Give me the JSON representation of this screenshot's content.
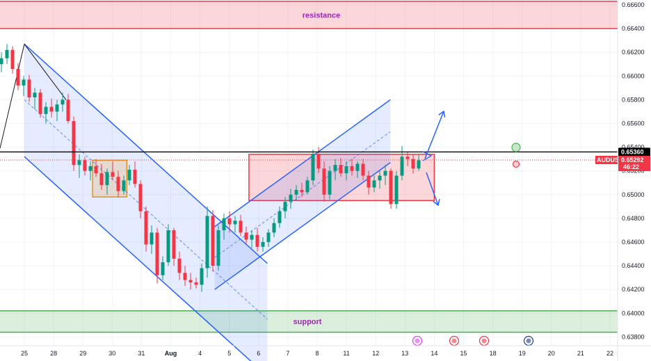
{
  "chart_data": {
    "type": "candlestick",
    "symbol": "AUDUSD",
    "last_price": "0.65292",
    "countdown": "46:22",
    "reference_line_price": "0.65360",
    "ylim": [
      0.6373,
      0.6666
    ],
    "y_ticks": [
      "0.66600",
      "0.66400",
      "0.66200",
      "0.66000",
      "0.65800",
      "0.65600",
      "0.65400",
      "0.65200",
      "0.65000",
      "0.64800",
      "0.64600",
      "0.64400",
      "0.64200",
      "0.64000",
      "0.63800"
    ],
    "x_ticks": [
      "25",
      "28",
      "29",
      "30",
      "31",
      "Aug",
      "4",
      "5",
      "6",
      "7",
      "8",
      "11",
      "12",
      "13",
      "14",
      "15",
      "18",
      "19",
      "20",
      "21",
      "22"
    ],
    "zones": {
      "resistance": {
        "label": "resistance",
        "from": 0.664,
        "to": 0.6663,
        "color": "#f23645"
      },
      "support": {
        "label": "support",
        "from": 0.6384,
        "to": 0.6402,
        "color": "#4caf50"
      }
    },
    "consolidation_box": {
      "from_day": 7.67,
      "to_day": 14.0,
      "low": 0.6495,
      "high": 0.6534
    },
    "mid_box": {
      "from_day": 2.33,
      "to_day": 3.5,
      "low": 0.6498,
      "high": 0.6529
    },
    "channels": [
      {
        "name": "down",
        "start_day": 0.0,
        "end_day": 8.3,
        "upper_start": 0.6627,
        "upper_end": 0.6442,
        "lower_start": 0.6532,
        "lower_end": 0.6347,
        "mid_start": 0.658,
        "mid_end": 0.6395
      },
      {
        "name": "up",
        "start_day": 6.5,
        "end_day": 12.5,
        "upper_start": 0.6473,
        "upper_end": 0.658,
        "lower_start": 0.642,
        "lower_end": 0.6527,
        "mid_start": 0.6447,
        "mid_end": 0.6553
      }
    ],
    "colors": {
      "up_candle": "#089981",
      "down_candle": "#f23645",
      "channel": "#2962ff",
      "last_price_tag": "#f23645",
      "reference_tag": "#000000"
    },
    "day_index": [
      0,
      1,
      2,
      3,
      4,
      5,
      6,
      7,
      8,
      9,
      10,
      11,
      12,
      13,
      14,
      15,
      16,
      17,
      18,
      19,
      20
    ],
    "candles": [
      [
        0.661,
        0.662,
        0.6603,
        0.6615
      ],
      [
        0.6615,
        0.6627,
        0.661,
        0.6622
      ],
      [
        0.6622,
        0.6625,
        0.6602,
        0.6606
      ],
      [
        0.6606,
        0.6611,
        0.6588,
        0.6592
      ],
      [
        0.6592,
        0.66,
        0.6583,
        0.6597
      ],
      [
        0.6597,
        0.6601,
        0.6578,
        0.6582
      ],
      [
        0.6582,
        0.659,
        0.6572,
        0.6586
      ],
      [
        0.6586,
        0.6589,
        0.6565,
        0.6568
      ],
      [
        0.6568,
        0.6578,
        0.656,
        0.6574
      ],
      [
        0.6574,
        0.6581,
        0.6565,
        0.657
      ],
      [
        0.657,
        0.658,
        0.6562,
        0.6576
      ],
      [
        0.6576,
        0.6586,
        0.657,
        0.658
      ],
      [
        0.658,
        0.6585,
        0.656,
        0.6562
      ],
      [
        0.6562,
        0.6566,
        0.652,
        0.6525
      ],
      [
        0.6525,
        0.6534,
        0.6514,
        0.6529
      ],
      [
        0.6529,
        0.6532,
        0.6516,
        0.652
      ],
      [
        0.652,
        0.6528,
        0.6512,
        0.6524
      ],
      [
        0.6524,
        0.653,
        0.6515,
        0.6518
      ],
      [
        0.6518,
        0.6526,
        0.6504,
        0.6508
      ],
      [
        0.6508,
        0.6522,
        0.65,
        0.6519
      ],
      [
        0.6519,
        0.6528,
        0.6512,
        0.6515
      ],
      [
        0.6515,
        0.652,
        0.6498,
        0.6503
      ],
      [
        0.6503,
        0.6516,
        0.65,
        0.6512
      ],
      [
        0.6512,
        0.6525,
        0.6508,
        0.6521
      ],
      [
        0.6521,
        0.6528,
        0.6506,
        0.6509
      ],
      [
        0.6509,
        0.6512,
        0.648,
        0.6486
      ],
      [
        0.6486,
        0.649,
        0.6452,
        0.6458
      ],
      [
        0.6458,
        0.6474,
        0.645,
        0.6468
      ],
      [
        0.6468,
        0.6472,
        0.6425,
        0.6432
      ],
      [
        0.6432,
        0.6448,
        0.6428,
        0.6443
      ],
      [
        0.6443,
        0.6475,
        0.644,
        0.647
      ],
      [
        0.647,
        0.6472,
        0.644,
        0.6446
      ],
      [
        0.6446,
        0.6452,
        0.6428,
        0.6434
      ],
      [
        0.6434,
        0.644,
        0.6423,
        0.6428
      ],
      [
        0.6428,
        0.6434,
        0.642,
        0.6426
      ],
      [
        0.6426,
        0.643,
        0.6421,
        0.6424
      ],
      [
        0.6424,
        0.6442,
        0.6418,
        0.6438
      ],
      [
        0.6438,
        0.649,
        0.643,
        0.6482
      ],
      [
        0.6482,
        0.6487,
        0.6435,
        0.644
      ],
      [
        0.644,
        0.6474,
        0.6436,
        0.647
      ],
      [
        0.647,
        0.6484,
        0.6462,
        0.648
      ],
      [
        0.648,
        0.6486,
        0.6468,
        0.6475
      ],
      [
        0.6475,
        0.6482,
        0.6468,
        0.6478
      ],
      [
        0.6478,
        0.6483,
        0.6465,
        0.6468
      ],
      [
        0.6468,
        0.6473,
        0.6458,
        0.6462
      ],
      [
        0.6462,
        0.647,
        0.6455,
        0.6466
      ],
      [
        0.6466,
        0.6472,
        0.6452,
        0.6456
      ],
      [
        0.6456,
        0.6464,
        0.6452,
        0.646
      ],
      [
        0.646,
        0.6471,
        0.6456,
        0.6468
      ],
      [
        0.6468,
        0.648,
        0.6464,
        0.6476
      ],
      [
        0.6476,
        0.649,
        0.6472,
        0.6486
      ],
      [
        0.6486,
        0.6498,
        0.648,
        0.6494
      ],
      [
        0.6494,
        0.6505,
        0.6488,
        0.65
      ],
      [
        0.65,
        0.6508,
        0.6495,
        0.6504
      ],
      [
        0.6504,
        0.651,
        0.6498,
        0.6502
      ],
      [
        0.6502,
        0.6515,
        0.65,
        0.6512
      ],
      [
        0.6512,
        0.6538,
        0.6508,
        0.6534
      ],
      [
        0.6534,
        0.654,
        0.6518,
        0.6522
      ],
      [
        0.6522,
        0.6528,
        0.6494,
        0.65
      ],
      [
        0.65,
        0.6524,
        0.6496,
        0.652
      ],
      [
        0.652,
        0.653,
        0.6512,
        0.6525
      ],
      [
        0.6525,
        0.6531,
        0.6515,
        0.6518
      ],
      [
        0.6518,
        0.6528,
        0.6512,
        0.6524
      ],
      [
        0.6524,
        0.653,
        0.6516,
        0.652
      ],
      [
        0.652,
        0.6528,
        0.6514,
        0.6526
      ],
      [
        0.6526,
        0.653,
        0.6512,
        0.6516
      ],
      [
        0.6516,
        0.652,
        0.65,
        0.6506
      ],
      [
        0.6506,
        0.6516,
        0.6502,
        0.6512
      ],
      [
        0.6512,
        0.652,
        0.6505,
        0.6516
      ],
      [
        0.6516,
        0.6525,
        0.6508,
        0.652
      ],
      [
        0.652,
        0.6522,
        0.6488,
        0.6492
      ],
      [
        0.6492,
        0.652,
        0.6488,
        0.6516
      ],
      [
        0.6516,
        0.6541,
        0.6512,
        0.6532
      ],
      [
        0.6532,
        0.6536,
        0.6524,
        0.653
      ],
      [
        0.653,
        0.6534,
        0.6518,
        0.6522
      ],
      [
        0.6522,
        0.6534,
        0.652,
        0.6529
      ]
    ]
  }
}
